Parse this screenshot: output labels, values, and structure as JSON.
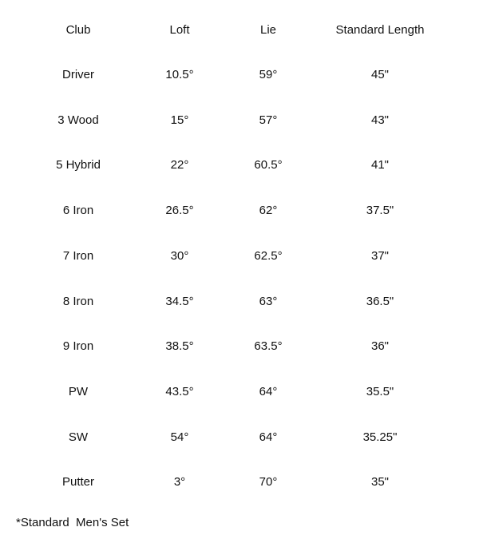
{
  "table": {
    "headers": [
      "Club",
      "Loft",
      "Lie",
      "Standard Length"
    ],
    "rows": [
      [
        "Driver",
        "10.5°",
        "59°",
        "45\""
      ],
      [
        "3 Wood",
        "15°",
        "57°",
        "43\""
      ],
      [
        "5 Hybrid",
        "22°",
        "60.5°",
        "41\""
      ],
      [
        "6 Iron",
        "26.5°",
        "62°",
        "37.5\""
      ],
      [
        "7 Iron",
        "30°",
        "62.5°",
        "37\""
      ],
      [
        "8 Iron",
        "34.5°",
        "63°",
        "36.5\""
      ],
      [
        "9 Iron",
        "38.5°",
        "63.5°",
        "36\""
      ],
      [
        "PW",
        "43.5°",
        "64°",
        "35.5\""
      ],
      [
        "SW",
        "54°",
        "64°",
        "35.25\""
      ],
      [
        "Putter",
        "3°",
        "70°",
        "35\""
      ]
    ]
  },
  "footnote": "*Standard  Men's Set"
}
